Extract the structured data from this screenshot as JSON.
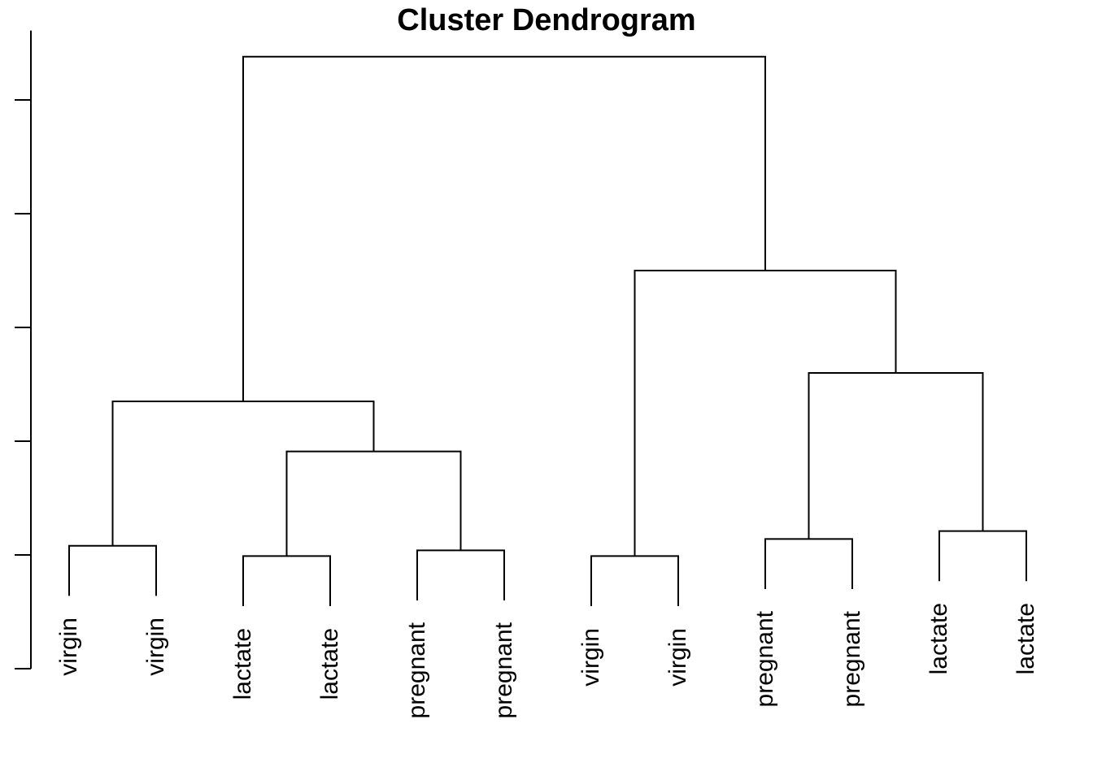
{
  "chart_data": {
    "type": "dendrogram",
    "title": "Cluster Dendrogram",
    "background_color": "#ffffff",
    "line_color": "#000000",
    "text_color": "#000000",
    "leaves": [
      {
        "label": "virgin"
      },
      {
        "label": "virgin"
      },
      {
        "label": "lactate"
      },
      {
        "label": "lactate"
      },
      {
        "label": "pregnant"
      },
      {
        "label": "pregnant"
      },
      {
        "label": "virgin"
      },
      {
        "label": "virgin"
      },
      {
        "label": "pregnant"
      },
      {
        "label": "pregnant"
      },
      {
        "label": "lactate"
      },
      {
        "label": "lactate"
      }
    ],
    "merges": [
      {
        "id": "M0",
        "children": [
          "L0",
          "L1"
        ],
        "height": 1.08
      },
      {
        "id": "M1",
        "children": [
          "L2",
          "L3"
        ],
        "height": 0.99
      },
      {
        "id": "M2",
        "children": [
          "L4",
          "L5"
        ],
        "height": 1.04
      },
      {
        "id": "M3",
        "children": [
          "M1",
          "M2"
        ],
        "height": 1.91
      },
      {
        "id": "M4",
        "children": [
          "M0",
          "M3"
        ],
        "height": 2.35
      },
      {
        "id": "M5",
        "children": [
          "L6",
          "L7"
        ],
        "height": 0.99
      },
      {
        "id": "M6",
        "children": [
          "L8",
          "L9"
        ],
        "height": 1.14
      },
      {
        "id": "M7",
        "children": [
          "L10",
          "L11"
        ],
        "height": 1.21
      },
      {
        "id": "M8",
        "children": [
          "M6",
          "M7"
        ],
        "height": 2.6
      },
      {
        "id": "M9",
        "children": [
          "M5",
          "M8"
        ],
        "height": 3.5
      },
      {
        "id": "M10",
        "children": [
          "M4",
          "M9"
        ],
        "height": 5.38
      }
    ],
    "leaf_hang": 0.44,
    "axis": {
      "side": "left",
      "tick_values": [
        0,
        1,
        2,
        3,
        4,
        5
      ],
      "tick_labels": [
        "",
        "",
        "",
        "",
        "",
        ""
      ],
      "line_range": [
        0,
        5.61
      ],
      "grid": false
    },
    "legend": null
  }
}
